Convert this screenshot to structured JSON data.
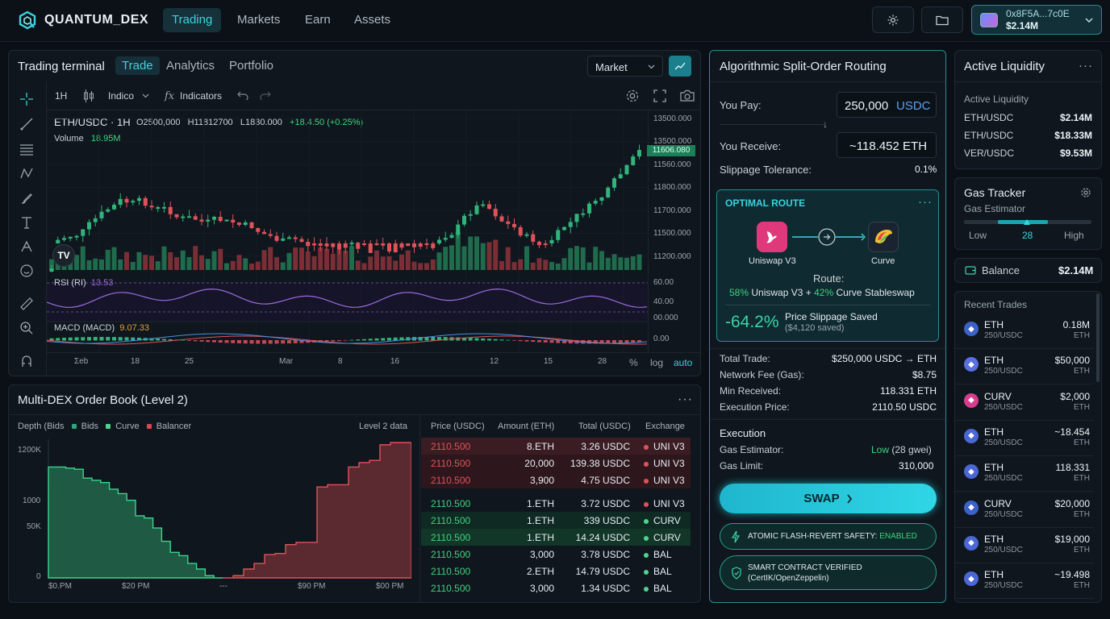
{
  "app": {
    "name": "QUANTUM_DEX"
  },
  "nav": {
    "tabs": [
      "Trading",
      "Markets",
      "Earn",
      "Assets"
    ],
    "active": "Trading"
  },
  "wallet": {
    "address": "0x8F5A...7c0E",
    "balance": "$2.14M"
  },
  "terminal": {
    "title": "Trading terminal",
    "tabs": [
      "Trade",
      "Analytics",
      "Portfolio"
    ],
    "order_type": "Market",
    "toolbar": {
      "interval": "1H",
      "indicators_short": "Indico",
      "indicators": "Indicators"
    },
    "symbol_line": "ETH/USDC · 1H",
    "ohlc": {
      "o": "O2500,000",
      "h": "H11812700",
      "l": "L1830.000",
      "chg": "+18.4.50 (+0.25%)"
    },
    "volume_label": "Volume",
    "volume_value": "18.95M",
    "price_axis": [
      "13500.000",
      "13500.000",
      "11560.000",
      "11800.000",
      "11700.000",
      "11500.000",
      "11200.000"
    ],
    "current_price": "11606.080",
    "rsi_label": "RSI (RI)",
    "rsi_value": "13.53",
    "rsi_axis": [
      "60.00",
      "40.00"
    ],
    "macd_label": "MACD (MACD)",
    "macd_value": "9.07.33",
    "macd_axis": [
      "00.000",
      "0.00"
    ],
    "time_axis": [
      "Σeb",
      "18",
      "25",
      "Mar",
      "8",
      "16",
      "12",
      "15",
      "28"
    ],
    "bottom_controls": [
      "%",
      "log",
      "auto"
    ]
  },
  "routing": {
    "title": "Algorithmic Split-Order Routing",
    "pay_label": "You Pay:",
    "pay_amount": "250,000",
    "pay_token": "USDC",
    "receive_label": "You Receive:",
    "receive_amount": "~118.452 ETH",
    "slippage_label": "Slippage Tolerance:",
    "slippage_value": "0.1%",
    "optimal_route_label": "OPTIMAL ROUTE",
    "route_from": "Uniswap V3",
    "route_to": "Curve",
    "route_label": "Route:",
    "route_split_a_pct": "58%",
    "route_split_a_name": "Uniswap V3 +",
    "route_split_b_pct": "42%",
    "route_split_b_name": "Curve Stableswap",
    "saved_pct": "-64.2%",
    "saved_label": "Price Slippage Saved",
    "saved_amount": "($4,120 saved)",
    "details": [
      {
        "label": "Total Trade:",
        "value": "$250,000 USDC → ETH"
      },
      {
        "label": "Network Fee (Gas):",
        "value": "$8.75"
      },
      {
        "label": "Min Received:",
        "value": "118.331 ETH"
      },
      {
        "label": "Execution Price:",
        "value": "2110.50 USDC"
      }
    ],
    "execution_title": "Execution",
    "gas_estimator_label": "Gas Estimator:",
    "gas_estimator_value": "Low",
    "gas_estimator_gwei": "(28 gwei)",
    "gas_limit_label": "Gas Limit:",
    "gas_limit_value": "310,000",
    "swap_label": "SWAP",
    "flash_label": "ATOMIC FLASH-REVERT SAFETY:",
    "flash_status": "ENABLED",
    "verified_line1": "SMART CONTRACT VERIFIED",
    "verified_line2": "(CertIK/OpenZeppelin)"
  },
  "liquidity": {
    "title": "Active Liquidity",
    "subtitle": "Active Liquidity",
    "rows": [
      {
        "pair": "ETH/USDC",
        "value": "$2.14M"
      },
      {
        "pair": "ETH/USDC",
        "value": "$18.33M"
      },
      {
        "pair": "VER/USDC",
        "value": "$9.53M"
      }
    ]
  },
  "gas": {
    "title": "Gas Tracker",
    "subtitle": "Gas Estimator",
    "low": "Low",
    "value": "28",
    "high": "High",
    "level": 0.66
  },
  "balance": {
    "label": "Balance",
    "value": "$2.14M"
  },
  "recent_trades": {
    "title": "Recent Trades",
    "rows": [
      {
        "token": "ETH",
        "pair": "250/USDC",
        "amount": "0.18M",
        "unit": "ETH",
        "color": "#3c62c9"
      },
      {
        "token": "ETH",
        "pair": "250/USDC",
        "amount": "$50,000",
        "unit": "ETH",
        "color": "#5a6fe0"
      },
      {
        "token": "CURV",
        "pair": "250/USDC",
        "amount": "$2,000",
        "unit": "ETH",
        "color": "#d83c8f"
      },
      {
        "token": "ETH",
        "pair": "250/USDC",
        "amount": "~18.454",
        "unit": "ETH",
        "color": "#4b67d6"
      },
      {
        "token": "ETH",
        "pair": "250/USDC",
        "amount": "118.331",
        "unit": "ETH",
        "color": "#4b67d6"
      },
      {
        "token": "CURV",
        "pair": "250/USDC",
        "amount": "$20,000",
        "unit": "ETH",
        "color": "#3c62c9"
      },
      {
        "token": "ETH",
        "pair": "250/USDC",
        "amount": "$19,000",
        "unit": "ETH",
        "color": "#4b67d6"
      },
      {
        "token": "ETH",
        "pair": "250/USDC",
        "amount": "~19.498",
        "unit": "ETH",
        "color": "#4b67d6"
      }
    ]
  },
  "orderbook": {
    "title": "Multi-DEX Order Book (Level 2)",
    "legend_prefix": "Depth (Bids",
    "legend": [
      {
        "name": "Bids",
        "color": "#2fa37b"
      },
      {
        "name": "Curve",
        "color": "#4fd48d"
      },
      {
        "name": "Balancer",
        "color": "#d9474f"
      }
    ],
    "level2_label": "Level 2 data",
    "columns": [
      "Price (USDC)",
      "Amount (ETH)",
      "Total (USDC)",
      "Exchange"
    ],
    "rows": [
      {
        "price": "2110.500",
        "amount": "8.ETH",
        "total": "3.26 USDC",
        "exchange": "UNI V3",
        "side": "ask"
      },
      {
        "price": "2110.500",
        "amount": "20,000",
        "total": "139.38 USDC",
        "exchange": "UNI V3",
        "side": "ask"
      },
      {
        "price": "2110.500",
        "amount": "3,900",
        "total": "4.75 USDC",
        "exchange": "UNI V3",
        "side": "ask"
      },
      {
        "price": "2110.500",
        "amount": "1.ETH",
        "total": "3.72 USDC",
        "exchange": "UNI V3",
        "side": "bid"
      },
      {
        "price": "2110.500",
        "amount": "1.ETH",
        "total": "339 USDC",
        "exchange": "CURV",
        "side": "bid"
      },
      {
        "price": "2110.500",
        "amount": "1.ETH",
        "total": "14.24 USDC",
        "exchange": "CURV",
        "side": "bid"
      },
      {
        "price": "2110.500",
        "amount": "3,000",
        "total": "3.78 USDC",
        "exchange": "BAL",
        "side": "bid"
      },
      {
        "price": "2110.500",
        "amount": "2.ETH",
        "total": "14.79 USDC",
        "exchange": "BAL",
        "side": "bid"
      },
      {
        "price": "2110.500",
        "amount": "3,000",
        "total": "1.34 USDC",
        "exchange": "BAL",
        "side": "bid"
      }
    ],
    "depth_y_labels": [
      "1200K",
      "1000",
      "50K",
      "0"
    ],
    "depth_x_labels": [
      "$0.PM",
      "$20 PM",
      "---",
      "$90 PM",
      "$00 PM"
    ]
  },
  "chart_data": [
    {
      "type": "line",
      "title": "Multi-DEX Order Book (Level 2)",
      "series": [
        {
          "name": "Bids",
          "values": [
            1000,
            1000,
            990,
            980,
            900,
            880,
            860,
            800,
            760,
            700,
            560,
            540,
            450,
            330,
            230,
            200,
            130,
            80,
            20,
            0
          ]
        },
        {
          "name": "Balancer",
          "values": [
            0,
            20,
            80,
            130,
            210,
            220,
            300,
            320,
            320,
            820,
            840,
            840,
            1000,
            1040,
            1060,
            1200,
            1220,
            1220
          ]
        }
      ],
      "ylabels": [
        "1200K",
        "1000",
        "50K",
        "0"
      ]
    }
  ]
}
